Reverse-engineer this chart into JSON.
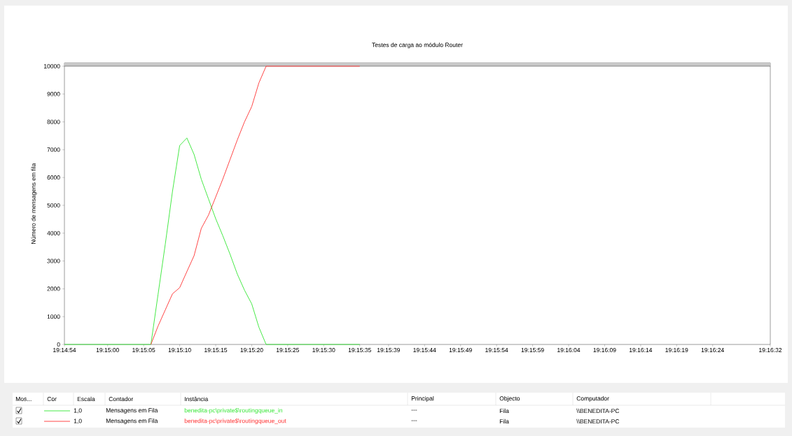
{
  "chart_data": {
    "type": "line",
    "title": "Testes de carga ao módulo Router",
    "ylabel": "Número de mensagens em fila",
    "x": [
      19.248333,
      19.251667,
      19.251944,
      19.252222,
      19.2525,
      19.252778,
      19.253056,
      19.253333,
      19.253611,
      19.253889,
      19.254167,
      19.254444,
      19.254722,
      19.255,
      19.255278,
      19.255556,
      19.255833,
      19.256111,
      19.259722
    ],
    "series": [
      {
        "name": "benedita-pc\\private$\\routingqueue_in",
        "color": "#33e633",
        "values": [
          0,
          0,
          1800,
          3600,
          5500,
          7150,
          7420,
          6830,
          5940,
          5230,
          4520,
          3900,
          3240,
          2530,
          1950,
          1460,
          620,
          0,
          0
        ]
      },
      {
        "name": "benedita-pc\\private$\\routingqueue_out",
        "color": "#ff3333",
        "values": [
          null,
          0,
          660,
          1240,
          1820,
          2040,
          2620,
          3190,
          4170,
          4650,
          5300,
          5950,
          6650,
          7350,
          8000,
          8550,
          9400,
          10000,
          10000
        ]
      }
    ],
    "xlim": [
      19.248333,
      19.275556
    ],
    "xticks": [
      {
        "value": 19.248333,
        "label": "19:14:54"
      },
      {
        "value": 19.25,
        "label": "19:15:00"
      },
      {
        "value": 19.251389,
        "label": "19:15:05"
      },
      {
        "value": 19.252778,
        "label": "19:15:10"
      },
      {
        "value": 19.254167,
        "label": "19:15:15"
      },
      {
        "value": 19.255556,
        "label": "19:15:20"
      },
      {
        "value": 19.256944,
        "label": "19:15:25"
      },
      {
        "value": 19.258333,
        "label": "19:15:30"
      },
      {
        "value": 19.259722,
        "label": "19:15:35"
      },
      {
        "value": 19.260833,
        "label": "19:15:39"
      },
      {
        "value": 19.262222,
        "label": "19:15:44"
      },
      {
        "value": 19.263611,
        "label": "19:15:49"
      },
      {
        "value": 19.265,
        "label": "19:15:54"
      },
      {
        "value": 19.266389,
        "label": "19:15:59"
      },
      {
        "value": 19.267778,
        "label": "19:16:04"
      },
      {
        "value": 19.269167,
        "label": "19:16:09"
      },
      {
        "value": 19.270556,
        "label": "19:16:14"
      },
      {
        "value": 19.271944,
        "label": "19:16:19"
      },
      {
        "value": 19.273333,
        "label": "19:16:24"
      },
      {
        "value": 19.275556,
        "label": "19:16:32"
      }
    ],
    "ylim": [
      0,
      10120
    ],
    "bands": [
      {
        "axis": "y",
        "from": 10000,
        "to": 10120,
        "color": "#c8c8c8"
      }
    ],
    "yticks": [
      0,
      1000,
      2000,
      3000,
      4000,
      5000,
      6000,
      7000,
      8000,
      9000,
      10000
    ],
    "legend": "bottom",
    "annotations": [
      "Mos...",
      "Cor",
      "Escala",
      "Contador",
      "Instância",
      "Principal",
      "Objecto",
      "Computador",
      "1,0",
      "Mensagens em Fila",
      "---",
      "Fila",
      "\\\\BENEDITA-PC",
      "1,0",
      "Mensagens em Fila",
      "---",
      "Fila",
      "\\\\BENEDITA-PC"
    ]
  }
}
